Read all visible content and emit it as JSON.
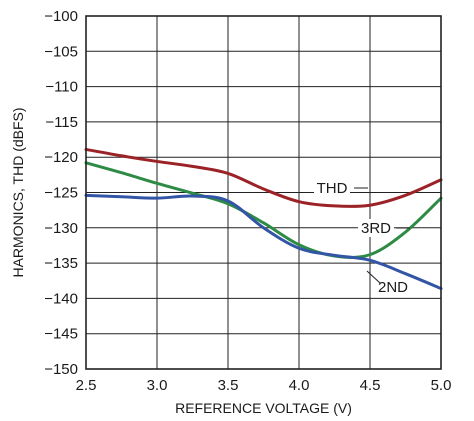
{
  "chart_data": {
    "type": "line",
    "title": "",
    "xlabel": "REFERENCE VOLTAGE (V)",
    "ylabel": "HARMONICS, THD (dBFS)",
    "xlim": [
      2.5,
      5.0
    ],
    "ylim": [
      -150,
      -100
    ],
    "x_ticks": [
      "2.5",
      "3.0",
      "3.5",
      "4.0",
      "4.5",
      "5.0"
    ],
    "y_ticks": [
      "−100",
      "−105",
      "−110",
      "−115",
      "−120",
      "−125",
      "−130",
      "−135",
      "−140",
      "−145",
      "−150"
    ],
    "grid": true,
    "series": [
      {
        "name": "THD",
        "color": "#9b2226",
        "x": [
          2.5,
          2.75,
          3.0,
          3.25,
          3.5,
          3.75,
          4.0,
          4.25,
          4.5,
          4.75,
          5.0
        ],
        "y": [
          -118.9,
          -119.8,
          -120.6,
          -121.3,
          -122.3,
          -124.5,
          -126.3,
          -126.9,
          -126.8,
          -125.4,
          -123.2
        ]
      },
      {
        "name": "3RD",
        "color": "#2e8b46",
        "x": [
          2.5,
          2.75,
          3.0,
          3.25,
          3.5,
          3.75,
          4.0,
          4.25,
          4.5,
          4.75,
          5.0
        ],
        "y": [
          -120.8,
          -122.2,
          -123.7,
          -125.1,
          -126.6,
          -129.3,
          -132.4,
          -134.0,
          -133.8,
          -130.6,
          -125.8
        ]
      },
      {
        "name": "2ND",
        "color": "#3355a5",
        "x": [
          2.5,
          2.75,
          3.0,
          3.25,
          3.5,
          3.75,
          4.0,
          4.25,
          4.5,
          4.75,
          5.0
        ],
        "y": [
          -125.4,
          -125.6,
          -125.8,
          -125.5,
          -126.2,
          -130.0,
          -132.9,
          -133.9,
          -134.6,
          -136.5,
          -138.6
        ]
      }
    ]
  }
}
